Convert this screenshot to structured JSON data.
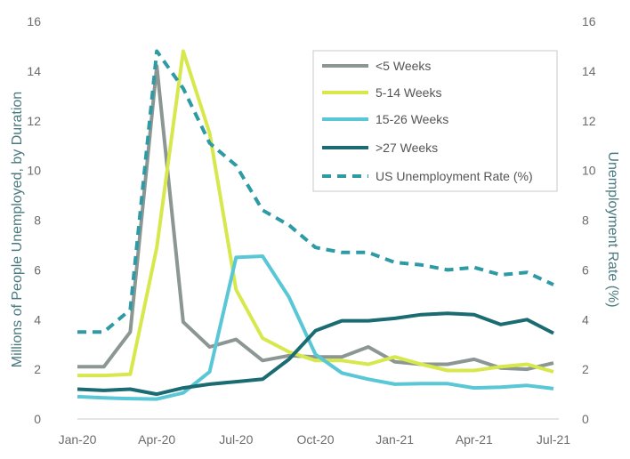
{
  "chart_data": {
    "type": "line",
    "x": [
      "Jan-20",
      "Feb-20",
      "Mar-20",
      "Apr-20",
      "May-20",
      "Jun-20",
      "Jul-20",
      "Aug-20",
      "Sep-20",
      "Oct-20",
      "Nov-20",
      "Dec-20",
      "Jan-21",
      "Feb-21",
      "Mar-21",
      "Apr-21",
      "May-21",
      "Jun-21",
      "Jul-21"
    ],
    "xticks": [
      "Jan-20",
      "Apr-20",
      "Jul-20",
      "Oct-20",
      "Jan-21",
      "Apr-21",
      "Jul-21"
    ],
    "ylabel": "Millions of People Unemployed, by Duration",
    "y2label": "Unemployment Rate (%)",
    "ylim": [
      0,
      16
    ],
    "y2lim": [
      0,
      16
    ],
    "yticks": [
      0,
      2,
      4,
      6,
      8,
      10,
      12,
      14,
      16
    ],
    "grid": false,
    "legend_position": "top-right",
    "series": [
      {
        "name": "<5 Weeks",
        "color": "#8c9794",
        "style": "solid",
        "axis": "left",
        "values": [
          2.1,
          2.1,
          3.5,
          14.2,
          3.9,
          2.9,
          3.2,
          2.35,
          2.55,
          2.5,
          2.5,
          2.9,
          2.3,
          2.2,
          2.2,
          2.4,
          2.05,
          2.0,
          2.25
        ]
      },
      {
        "name": "5-14 Weeks",
        "color": "#d7e84d",
        "style": "solid",
        "axis": "left",
        "values": [
          1.75,
          1.75,
          1.8,
          6.9,
          14.8,
          11.5,
          5.2,
          3.25,
          2.7,
          2.35,
          2.35,
          2.2,
          2.5,
          2.2,
          1.95,
          1.95,
          2.1,
          2.2,
          1.9
        ]
      },
      {
        "name": "15-26 Weeks",
        "color": "#59c7d6",
        "style": "solid",
        "axis": "left",
        "values": [
          0.9,
          0.85,
          0.82,
          0.8,
          1.05,
          1.9,
          6.5,
          6.55,
          4.9,
          2.6,
          1.85,
          1.6,
          1.4,
          1.42,
          1.42,
          1.25,
          1.28,
          1.35,
          1.22
        ]
      },
      {
        "name": ">27 Weeks",
        "color": "#1a6b72",
        "style": "solid",
        "axis": "left",
        "values": [
          1.2,
          1.15,
          1.2,
          1.0,
          1.25,
          1.4,
          1.5,
          1.6,
          2.4,
          3.55,
          3.95,
          3.95,
          4.05,
          4.2,
          4.25,
          4.2,
          3.8,
          4.0,
          3.45
        ]
      },
      {
        "name": "US Unemployment Rate (%)",
        "color": "#2e9aa3",
        "style": "dashed",
        "axis": "right",
        "values": [
          3.5,
          3.5,
          4.4,
          14.8,
          13.3,
          11.1,
          10.2,
          8.4,
          7.8,
          6.9,
          6.7,
          6.7,
          6.3,
          6.2,
          6.0,
          6.1,
          5.8,
          5.9,
          5.4
        ]
      }
    ]
  }
}
